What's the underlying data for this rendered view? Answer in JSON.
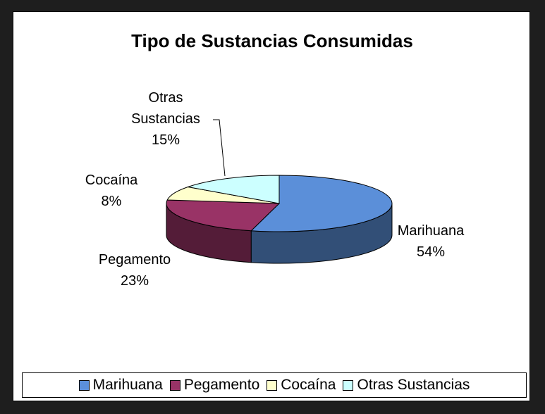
{
  "chart_data": {
    "type": "pie3d",
    "title": "Tipo de Sustancias Consumidas",
    "categories": [
      "Marihuana",
      "Pegamento",
      "Cocaína",
      "Otras Sustancias"
    ],
    "values": [
      54,
      23,
      8,
      15
    ],
    "value_labels": [
      "54%",
      "23%",
      "8%",
      "15%"
    ],
    "colors": [
      "#5b8fd9",
      "#993366",
      "#ffffcc",
      "#ccffff"
    ],
    "legend": "bottom"
  }
}
